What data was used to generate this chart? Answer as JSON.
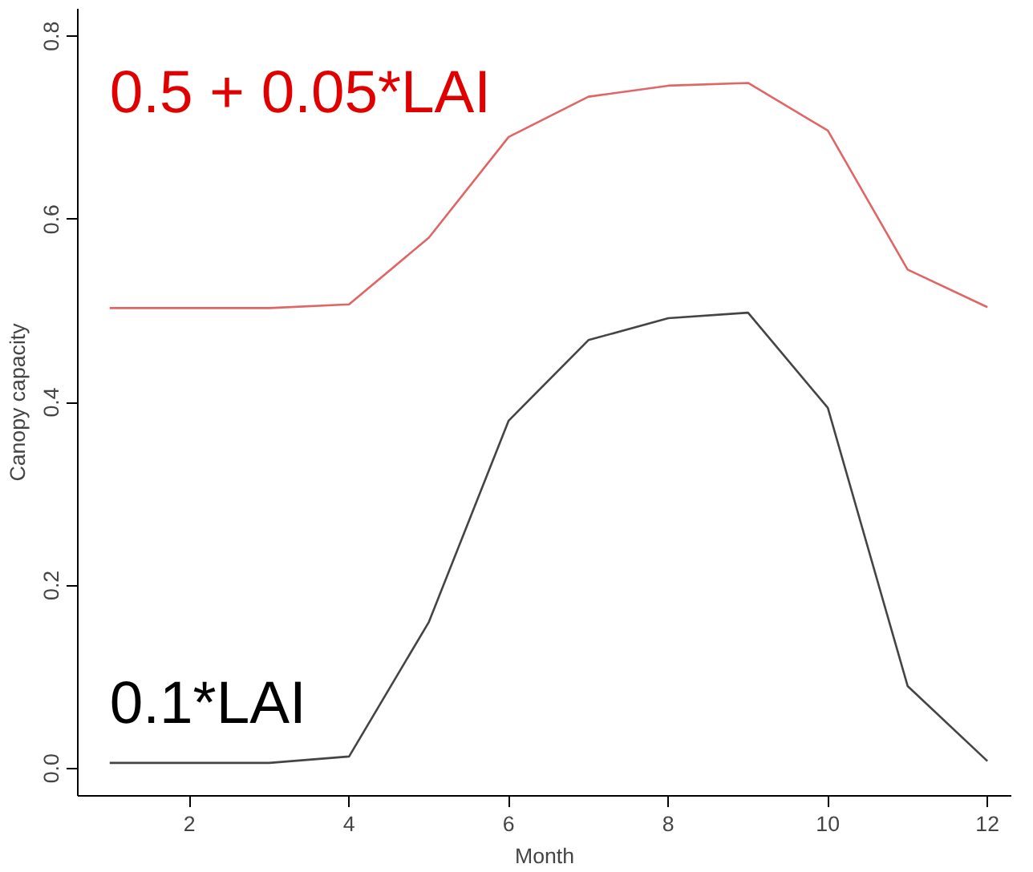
{
  "chart_data": {
    "type": "line",
    "xlabel": "Month",
    "ylabel": "Canopy capacity",
    "x": [
      1,
      2,
      3,
      4,
      5,
      6,
      7,
      8,
      9,
      10,
      11,
      12
    ],
    "series": [
      {
        "name": "0.5 + 0.05*LAI",
        "color": "#e06666",
        "values": [
          0.503,
          0.503,
          0.503,
          0.507,
          0.58,
          0.69,
          0.734,
          0.746,
          0.749,
          0.697,
          0.545,
          0.504
        ]
      },
      {
        "name": "0.1*LAI",
        "color": "#444444",
        "values": [
          0.006,
          0.006,
          0.006,
          0.013,
          0.16,
          0.38,
          0.468,
          0.492,
          0.498,
          0.394,
          0.09,
          0.008
        ]
      }
    ],
    "xlim": [
      0.6,
      12.3
    ],
    "ylim": [
      -0.03,
      0.83
    ],
    "xticks": [
      2,
      4,
      6,
      8,
      10,
      12
    ],
    "yticks": [
      {
        "value": 0,
        "label": "0.0"
      },
      {
        "value": 0.2,
        "label": "0.2"
      },
      {
        "value": 0.4,
        "label": "0.4"
      },
      {
        "value": 0.6,
        "label": "0.6"
      },
      {
        "value": 0.8,
        "label": "0.8"
      }
    ],
    "grid": false,
    "legend": false,
    "marker": "none",
    "line_style": "solid"
  }
}
